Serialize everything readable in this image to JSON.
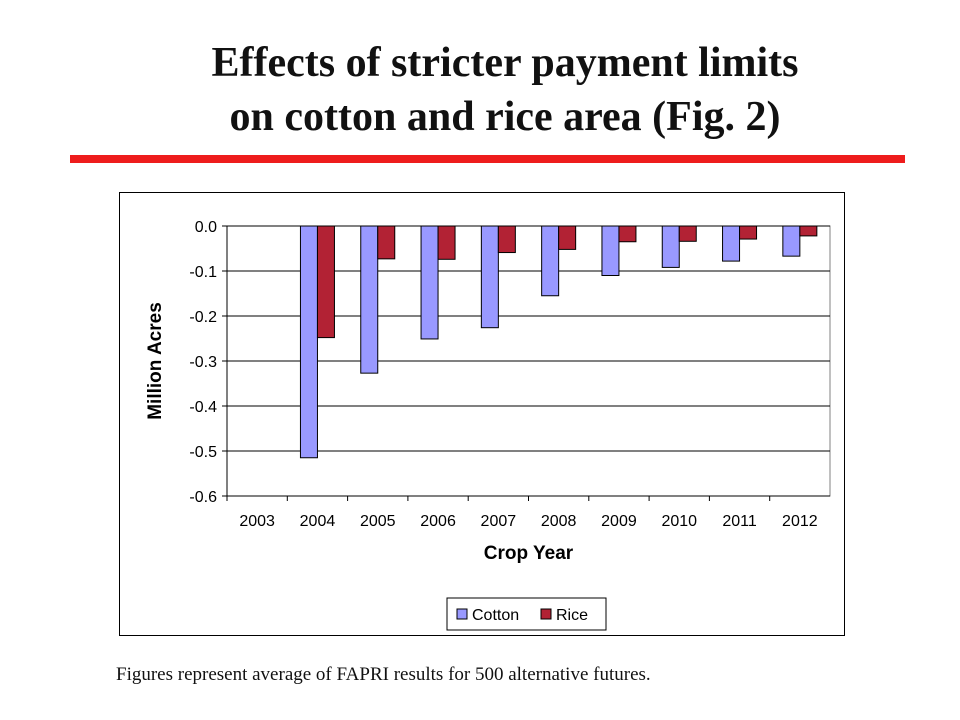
{
  "slide": {
    "title_line1": "Effects of stricter payment limits",
    "title_line2": "on cotton and rice area (Fig. 2)",
    "caption": "Figures represent average of FAPRI results for 500 alternative futures.",
    "accent_color": "#ee1c1c"
  },
  "chart_data": {
    "type": "bar",
    "xlabel": "Crop Year",
    "ylabel": "Million Acres",
    "ylim": [
      -0.6,
      0.0
    ],
    "yticks": [
      0.0,
      -0.1,
      -0.2,
      -0.3,
      -0.4,
      -0.5,
      -0.6
    ],
    "ytick_labels": [
      "0.0",
      "-0.1",
      "-0.2",
      "-0.3",
      "-0.4",
      "-0.5",
      "-0.6"
    ],
    "grid": true,
    "legend_position": "bottom",
    "categories": [
      "2003",
      "2004",
      "2005",
      "2006",
      "2007",
      "2008",
      "2009",
      "2010",
      "2011",
      "2012"
    ],
    "series": [
      {
        "name": "Cotton",
        "color": "#9999ff",
        "values": [
          0.0,
          -0.515,
          -0.327,
          -0.251,
          -0.226,
          -0.155,
          -0.11,
          -0.092,
          -0.078,
          -0.067
        ]
      },
      {
        "name": "Rice",
        "color": "#b22234",
        "values": [
          0.0,
          -0.248,
          -0.073,
          -0.074,
          -0.059,
          -0.052,
          -0.035,
          -0.034,
          -0.029,
          -0.022
        ]
      }
    ]
  }
}
